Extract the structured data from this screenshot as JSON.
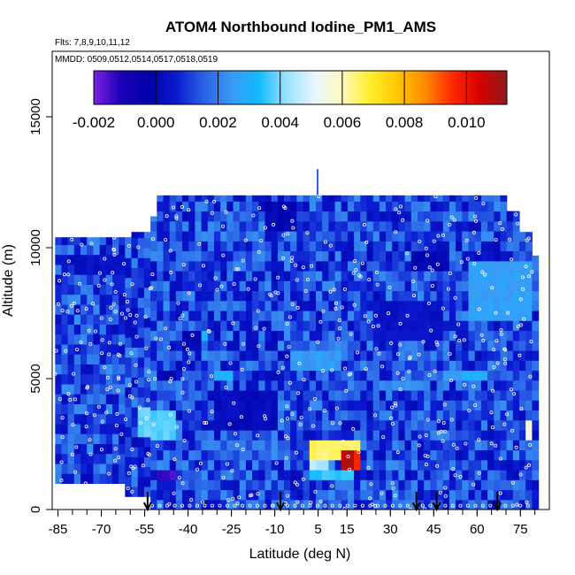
{
  "title": "ATOM4 Northbound Iodine_PM1_AMS",
  "flights_label": "Flts: 7,8,9,10,11,12",
  "dates_label": "MMDD: 0509,0512,0514,0517,0518,0519",
  "chart_data": {
    "type": "heatmap",
    "title": "ATOM4 Northbound Iodine_PM1_AMS",
    "xlabel": "Latitude (deg N)",
    "ylabel": "Altitude (m)",
    "xlim": [
      -87,
      85
    ],
    "ylim": [
      0,
      17500
    ],
    "x_ticks": [
      -85,
      -70,
      -55,
      -40,
      -25,
      -10,
      5,
      15,
      30,
      45,
      60,
      75
    ],
    "y_ticks": [
      0,
      5000,
      10000,
      15000
    ],
    "x_ticks_labeled": [
      -85,
      -70,
      -55,
      -40,
      -25,
      -10,
      5,
      15,
      30,
      45,
      60,
      75
    ],
    "x_tick_labels": [
      "-85",
      "-70",
      "-55",
      "-40",
      "-25",
      "-10",
      "5",
      "15",
      "30",
      "45",
      "60",
      "75"
    ],
    "y_tick_labels": [
      "0",
      "5000",
      "10000",
      "15000"
    ],
    "colorbar": {
      "range": [
        -0.002,
        0.0113
      ],
      "ticks": [
        -0.002,
        0.0,
        0.002,
        0.004,
        0.006,
        0.008,
        0.01
      ],
      "tick_labels": [
        "-0.002",
        "0.000",
        "0.002",
        "0.004",
        "0.006",
        "0.008",
        "0.010"
      ],
      "colors": [
        "#7b22e0",
        "#1a00b8",
        "#0000a8",
        "#0a1ad0",
        "#2a62e6",
        "#3a9af5",
        "#12bbff",
        "#9ae2ff",
        "#e8f6ff",
        "#fff9c0",
        "#ffef30",
        "#ffc800",
        "#ff8c00",
        "#ff2a00",
        "#d80000",
        "#8e1c1c"
      ]
    },
    "background_value": 0.0012,
    "regions": [
      {
        "lat": [
          -57,
          -44
        ],
        "alt": [
          2800,
          3800
        ],
        "value": 0.0038
      },
      {
        "lat": [
          -41,
          -34
        ],
        "alt": [
          6300,
          6800
        ],
        "value": 0.0032
      },
      {
        "lat": [
          -30,
          -24
        ],
        "alt": [
          4900,
          5500
        ],
        "value": 0.003
      },
      {
        "lat": [
          -50,
          -44
        ],
        "alt": [
          4800,
          5200
        ],
        "value": 0.0
      },
      {
        "lat": [
          -50,
          -45
        ],
        "alt": [
          1000,
          1400
        ],
        "value": -0.0015
      },
      {
        "lat": [
          -42,
          -35
        ],
        "alt": [
          6000,
          6800
        ],
        "value": 0.0
      },
      {
        "lat": [
          -14,
          -2
        ],
        "alt": [
          10600,
          11800
        ],
        "value": 0.0
      },
      {
        "lat": [
          -30,
          -10
        ],
        "alt": [
          3200,
          4500
        ],
        "value": 0.0002
      },
      {
        "lat": [
          3,
          20
        ],
        "alt": [
          1800,
          2700
        ],
        "value": 0.0065
      },
      {
        "lat": [
          3,
          9
        ],
        "alt": [
          1600,
          2000
        ],
        "value": 0.0045
      },
      {
        "lat": [
          12,
          19
        ],
        "alt": [
          1500,
          2200
        ],
        "value": 0.0095
      },
      {
        "lat": [
          14,
          18
        ],
        "alt": [
          1600,
          2100
        ],
        "value": 0.0108
      },
      {
        "lat": [
          3,
          17
        ],
        "alt": [
          1200,
          1600
        ],
        "value": 0.0035
      },
      {
        "lat": [
          28,
          44
        ],
        "alt": [
          4400,
          5000
        ],
        "value": 0.0022
      },
      {
        "lat": [
          38,
          50
        ],
        "alt": [
          9200,
          10000
        ],
        "value": 0.0
      },
      {
        "lat": [
          48,
          58
        ],
        "alt": [
          5100,
          5500
        ],
        "value": 0.0025
      },
      {
        "lat": [
          55,
          64
        ],
        "alt": [
          4800,
          5200
        ],
        "value": 0.003
      },
      {
        "lat": [
          76,
          79
        ],
        "alt": [
          2600,
          3600
        ],
        "value": 0.0055
      },
      {
        "lat": [
          58,
          80
        ],
        "alt": [
          7200,
          9500
        ],
        "value": 0.0026
      },
      {
        "lat": [
          -80,
          -60
        ],
        "alt": [
          8800,
          9600
        ],
        "value": 0.0004
      },
      {
        "lat": [
          25,
          48
        ],
        "alt": [
          6500,
          8000
        ],
        "value": 0.0004
      },
      {
        "lat": [
          -4,
          14
        ],
        "alt": [
          5200,
          6200
        ],
        "value": 0.0025
      }
    ],
    "flight_markers_latitude": [
      -54,
      -8,
      39,
      46,
      67
    ]
  }
}
